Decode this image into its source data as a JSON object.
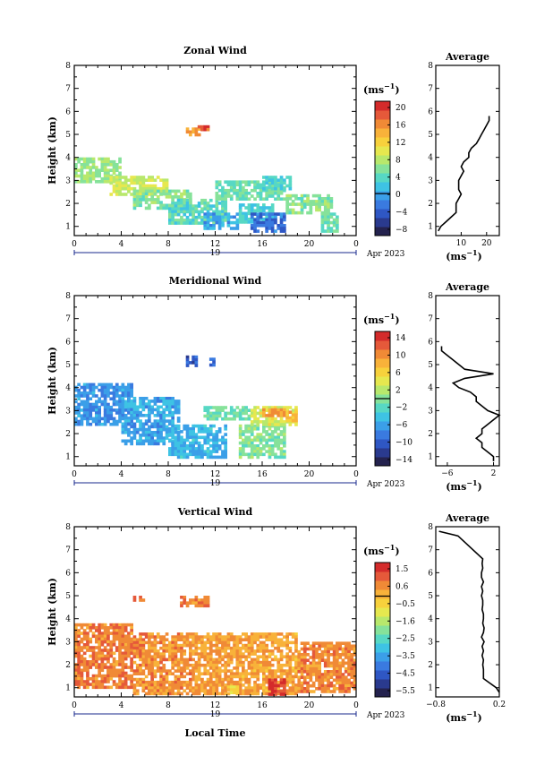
{
  "date_label": "Apr 2023",
  "xlabel": "Local Time",
  "ylabel": "Height (km)",
  "unit_label": "(ms",
  "unit_sup": "−1",
  "colors": {
    "scale": [
      "#24224e",
      "#2a3a8e",
      "#2f57c4",
      "#3a7ae0",
      "#3b9fe8",
      "#3ec3e4",
      "#57d8c4",
      "#86e29a",
      "#b8e86c",
      "#e6e84f",
      "#f7d13c",
      "#f8b23a",
      "#f08a36",
      "#e5593a",
      "#d42b2b"
    ]
  },
  "chart_data": [
    {
      "type": "heatmap",
      "id": "zonal",
      "title": "Zonal Wind",
      "x_ticks": [
        "0",
        "4",
        "8",
        "12",
        "16",
        "20",
        "0"
      ],
      "x_sublabel": "19",
      "y_ticks": [
        "1",
        "2",
        "3",
        "4",
        "5",
        "6",
        "7",
        "8"
      ],
      "xlim": [
        0,
        24
      ],
      "ylim": [
        0.6,
        8.0
      ],
      "colorbar_ticks": [
        "20",
        "16",
        "12",
        "8",
        "4",
        "0",
        "−4",
        "−8"
      ],
      "colorbar_range": [
        -10,
        22
      ],
      "average_title": "Average",
      "average_xticks": [
        "10",
        "20"
      ],
      "average_xlim": [
        0,
        25
      ],
      "average_unit": "(ms",
      "average_unit_sup": "−1",
      "average_profile": {
        "height": [
          0.8,
          1.0,
          1.2,
          1.4,
          1.6,
          1.8,
          2.0,
          2.2,
          2.4,
          2.6,
          2.8,
          3.0,
          3.2,
          3.4,
          3.6,
          3.8,
          4.0,
          4.2,
          4.4,
          4.6,
          4.8,
          5.0,
          5.2,
          5.4,
          5.6,
          5.8
        ],
        "value": [
          1,
          2,
          4,
          6,
          8,
          8,
          8,
          9,
          10,
          9,
          9,
          9,
          10,
          11,
          10,
          11,
          13,
          13,
          14,
          16,
          17,
          18,
          19,
          20,
          21,
          21
        ]
      },
      "patches": [
        {
          "t0": 0,
          "t1": 4,
          "h0": 3.0,
          "h1": 4.0,
          "v": 7
        },
        {
          "t0": 3,
          "t1": 8,
          "h0": 2.4,
          "h1": 3.2,
          "v": 9
        },
        {
          "t0": 5,
          "t1": 10,
          "h0": 1.8,
          "h1": 2.6,
          "v": 6
        },
        {
          "t0": 8,
          "t1": 13,
          "h0": 1.2,
          "h1": 2.2,
          "v": 4
        },
        {
          "t0": 11,
          "t1": 14,
          "h0": 0.9,
          "h1": 1.6,
          "v": 0
        },
        {
          "t0": 12,
          "t1": 18,
          "h0": 2.2,
          "h1": 3.0,
          "v": 5
        },
        {
          "t0": 14,
          "t1": 17,
          "h0": 1.2,
          "h1": 2.0,
          "v": 3
        },
        {
          "t0": 15,
          "t1": 18,
          "h0": 0.8,
          "h1": 1.6,
          "v": -3
        },
        {
          "t0": 16,
          "t1": 18.5,
          "h0": 2.6,
          "h1": 3.2,
          "v": 3
        },
        {
          "t0": 18,
          "t1": 22,
          "h0": 1.6,
          "h1": 2.4,
          "v": 6
        },
        {
          "t0": 21,
          "t1": 22.5,
          "h0": 0.8,
          "h1": 1.6,
          "v": 5
        },
        {
          "t0": 9.5,
          "t1": 11,
          "h0": 5.0,
          "h1": 5.3,
          "v": 16
        },
        {
          "t0": 10.5,
          "t1": 11.5,
          "h0": 5.2,
          "h1": 5.4,
          "v": 19
        }
      ]
    },
    {
      "type": "heatmap",
      "id": "meridional",
      "title": "Meridional Wind",
      "x_ticks": [
        "0",
        "4",
        "8",
        "12",
        "16",
        "20",
        "0"
      ],
      "x_sublabel": "19",
      "y_ticks": [
        "1",
        "2",
        "3",
        "4",
        "5",
        "6",
        "7",
        "8"
      ],
      "xlim": [
        0,
        24
      ],
      "ylim": [
        0.6,
        8.0
      ],
      "colorbar_ticks": [
        "14",
        "10",
        "6",
        "2",
        "−2",
        "−6",
        "−10",
        "−14"
      ],
      "colorbar_range": [
        -16,
        16
      ],
      "average_title": "Average",
      "average_xticks": [
        "−6",
        "2"
      ],
      "average_xlim": [
        -8,
        3
      ],
      "average_unit": "(ms",
      "average_unit_sup": "−1",
      "average_profile": {
        "height": [
          0.8,
          1.0,
          1.2,
          1.4,
          1.6,
          1.8,
          2.0,
          2.2,
          2.4,
          2.6,
          2.8,
          3.0,
          3.2,
          3.4,
          3.6,
          3.8,
          4.0,
          4.2,
          4.4,
          4.6,
          4.8,
          5.0,
          5.2,
          5.4,
          5.6,
          5.8
        ],
        "value": [
          2,
          2,
          1,
          0,
          0,
          -1,
          0,
          0,
          1,
          2,
          3,
          1,
          0,
          -1,
          -1,
          -2,
          -4,
          -5,
          -3,
          2,
          -3,
          -4,
          -5,
          -6,
          -7,
          -7
        ]
      },
      "patches": [
        {
          "t0": 0,
          "t1": 5,
          "h0": 2.4,
          "h1": 4.2,
          "v": -7
        },
        {
          "t0": 4,
          "t1": 9,
          "h0": 1.6,
          "h1": 3.6,
          "v": -6
        },
        {
          "t0": 8,
          "t1": 13,
          "h0": 1.0,
          "h1": 2.4,
          "v": -5
        },
        {
          "t0": 11,
          "t1": 15,
          "h0": 2.6,
          "h1": 3.2,
          "v": -1
        },
        {
          "t0": 14,
          "t1": 18,
          "h0": 1.0,
          "h1": 2.4,
          "v": 0
        },
        {
          "t0": 15,
          "t1": 19,
          "h0": 2.4,
          "h1": 3.2,
          "v": 4
        },
        {
          "t0": 16,
          "t1": 18,
          "h0": 2.8,
          "h1": 3.1,
          "v": 10
        },
        {
          "t0": 18,
          "t1": 19,
          "h0": 2.6,
          "h1": 3.0,
          "v": 8
        },
        {
          "t0": 9.5,
          "t1": 10.5,
          "h0": 5.0,
          "h1": 5.4,
          "v": -10
        },
        {
          "t0": 11.5,
          "t1": 12,
          "h0": 5.0,
          "h1": 5.3,
          "v": -10
        }
      ]
    },
    {
      "type": "heatmap",
      "id": "vertical",
      "title": "Vertical Wind",
      "x_ticks": [
        "0",
        "4",
        "8",
        "12",
        "16",
        "20",
        "0"
      ],
      "x_sublabel": "19",
      "y_ticks": [
        "1",
        "2",
        "3",
        "4",
        "5",
        "6",
        "7",
        "8"
      ],
      "xlim": [
        0,
        24
      ],
      "ylim": [
        0.6,
        8.0
      ],
      "colorbar_ticks": [
        "1.5",
        "0.6",
        "−0.5",
        "−1.6",
        "−2.5",
        "−3.5",
        "−4.5",
        "−5.5"
      ],
      "colorbar_range": [
        -6,
        2
      ],
      "average_title": "Average",
      "average_xticks": [
        "−0.8",
        "0.2"
      ],
      "average_xlim": [
        -0.8,
        0.2
      ],
      "average_unit": "(ms",
      "average_unit_sup": "−1",
      "average_profile": {
        "height": [
          0.8,
          1.0,
          1.2,
          1.4,
          1.6,
          1.8,
          2.0,
          2.2,
          2.4,
          2.6,
          2.8,
          3.0,
          3.2,
          3.4,
          3.6,
          3.8,
          4.0,
          4.2,
          4.4,
          4.6,
          4.8,
          5.0,
          5.2,
          5.4,
          5.6,
          5.8,
          6.0,
          6.2,
          6.4,
          6.6,
          7.6,
          7.8
        ],
        "value": [
          0.2,
          0.15,
          0.05,
          -0.05,
          -0.05,
          -0.05,
          -0.06,
          -0.05,
          -0.07,
          -0.05,
          -0.07,
          -0.04,
          -0.08,
          -0.05,
          -0.04,
          -0.06,
          -0.05,
          -0.05,
          -0.07,
          -0.06,
          -0.06,
          -0.08,
          -0.06,
          -0.08,
          -0.05,
          -0.08,
          -0.08,
          -0.06,
          -0.07,
          -0.06,
          -0.45,
          -0.75
        ]
      },
      "patches": [
        {
          "t0": 0,
          "t1": 5,
          "h0": 1.0,
          "h1": 3.8,
          "v": 0.8
        },
        {
          "t0": 5,
          "t1": 10,
          "h0": 0.8,
          "h1": 3.4,
          "v": 0.6
        },
        {
          "t0": 10,
          "t1": 14,
          "h0": 0.8,
          "h1": 3.4,
          "v": 0.4
        },
        {
          "t0": 14,
          "t1": 19,
          "h0": 0.8,
          "h1": 3.4,
          "v": 0.3
        },
        {
          "t0": 16.5,
          "t1": 18,
          "h0": 0.7,
          "h1": 1.4,
          "v": 1.7
        },
        {
          "t0": 19,
          "t1": 24,
          "h0": 0.8,
          "h1": 3.0,
          "v": 0.7
        },
        {
          "t0": 13,
          "t1": 14,
          "h0": 0.8,
          "h1": 1.1,
          "v": -0.5
        },
        {
          "t0": 9,
          "t1": 11.5,
          "h0": 4.6,
          "h1": 5.0,
          "v": 0.8
        },
        {
          "t0": 5,
          "t1": 6,
          "h0": 4.8,
          "h1": 5.0,
          "v": 0.8
        }
      ]
    }
  ]
}
